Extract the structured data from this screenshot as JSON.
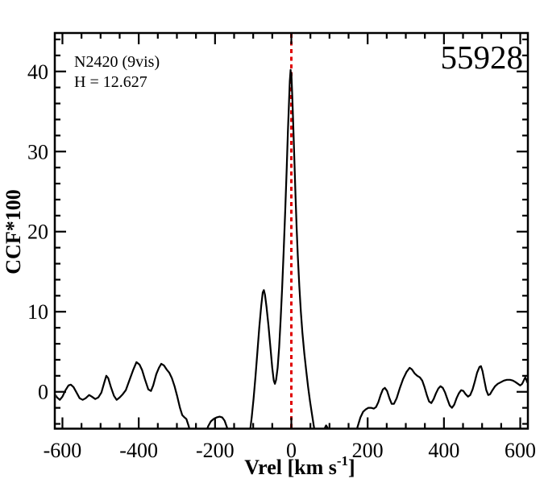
{
  "chart_data": {
    "type": "line",
    "annotations": {
      "cluster": "N2420 (9vis)",
      "magnitude": "H = 12.627",
      "mjd": "55928"
    },
    "xlabel": {
      "prefix": "Vrel [km s",
      "sup": "-1",
      "suffix": "]"
    },
    "ylabel": "CCF*100",
    "xlim": [
      -620,
      620
    ],
    "ylim": [
      -4.6,
      44.8
    ],
    "x_major_ticks": [
      -600,
      -400,
      -200,
      0,
      200,
      400,
      600
    ],
    "x_minor_step": 50,
    "y_major_ticks": [
      0,
      10,
      20,
      30,
      40
    ],
    "y_minor_step": 2,
    "grid": false,
    "legend": "none",
    "ref_line": {
      "x": 0,
      "color": "#e00000",
      "style": "dotted"
    },
    "colors": {
      "curve": "#000000",
      "axis": "#000000",
      "background": "#ffffff"
    },
    "series": [
      {
        "name": "ccf",
        "points": [
          [
            -621,
            -0.2
          ],
          [
            -614,
            -0.7
          ],
          [
            -607,
            -1.0
          ],
          [
            -600,
            -0.6
          ],
          [
            -592,
            0.2
          ],
          [
            -584,
            0.8
          ],
          [
            -578,
            0.9
          ],
          [
            -571,
            0.6
          ],
          [
            -563,
            -0.1
          ],
          [
            -555,
            -0.8
          ],
          [
            -547,
            -1.0
          ],
          [
            -539,
            -0.8
          ],
          [
            -530,
            -0.4
          ],
          [
            -523,
            -0.6
          ],
          [
            -514,
            -0.9
          ],
          [
            -506,
            -0.7
          ],
          [
            -498,
            -0.1
          ],
          [
            -490,
            1.2
          ],
          [
            -485,
            2.0
          ],
          [
            -480,
            1.7
          ],
          [
            -473,
            0.6
          ],
          [
            -465,
            -0.5
          ],
          [
            -458,
            -1.0
          ],
          [
            -450,
            -0.7
          ],
          [
            -442,
            -0.3
          ],
          [
            -434,
            0.2
          ],
          [
            -424,
            1.5
          ],
          [
            -414,
            2.8
          ],
          [
            -406,
            3.7
          ],
          [
            -398,
            3.4
          ],
          [
            -391,
            2.7
          ],
          [
            -384,
            1.6
          ],
          [
            -375,
            0.3
          ],
          [
            -368,
            0.1
          ],
          [
            -362,
            0.8
          ],
          [
            -354,
            2.2
          ],
          [
            -347,
            3.0
          ],
          [
            -341,
            3.5
          ],
          [
            -334,
            3.3
          ],
          [
            -327,
            2.8
          ],
          [
            -320,
            2.4
          ],
          [
            -313,
            1.7
          ],
          [
            -306,
            0.7
          ],
          [
            -299,
            -0.6
          ],
          [
            -292,
            -2.0
          ],
          [
            -286,
            -2.9
          ],
          [
            -280,
            -3.2
          ],
          [
            -275,
            -3.4
          ],
          [
            -269,
            -4.3
          ],
          [
            -263,
            -5.5
          ],
          [
            -256,
            -6.6
          ],
          [
            -248,
            -7.4
          ],
          [
            -240,
            -7.2
          ],
          [
            -232,
            -6.2
          ],
          [
            -225,
            -5.2
          ],
          [
            -218,
            -4.3
          ],
          [
            -211,
            -3.7
          ],
          [
            -204,
            -3.4
          ],
          [
            -196,
            -3.2
          ],
          [
            -188,
            -3.1
          ],
          [
            -181,
            -3.2
          ],
          [
            -175,
            -3.6
          ],
          [
            -169,
            -4.4
          ],
          [
            -163,
            -5.4
          ],
          [
            -156,
            -6.6
          ],
          [
            -148,
            -7.8
          ],
          [
            -139,
            -8.6
          ],
          [
            -130,
            -8.8
          ],
          [
            -122,
            -8.2
          ],
          [
            -115,
            -6.9
          ],
          [
            -109,
            -5.2
          ],
          [
            -104,
            -3.2
          ],
          [
            -99,
            -0.9
          ],
          [
            -94,
            1.9
          ],
          [
            -89,
            5.0
          ],
          [
            -84,
            8.0
          ],
          [
            -79,
            10.7
          ],
          [
            -75,
            12.4
          ],
          [
            -72,
            12.7
          ],
          [
            -69,
            12.1
          ],
          [
            -65,
            10.6
          ],
          [
            -60,
            8.3
          ],
          [
            -55,
            5.6
          ],
          [
            -50,
            3.0
          ],
          [
            -46,
            1.4
          ],
          [
            -43,
            1.0
          ],
          [
            -40,
            1.5
          ],
          [
            -36,
            3.0
          ],
          [
            -32,
            5.6
          ],
          [
            -28,
            9.0
          ],
          [
            -24,
            13.0
          ],
          [
            -20,
            17.6
          ],
          [
            -16,
            22.6
          ],
          [
            -12,
            28.0
          ],
          [
            -9,
            32.4
          ],
          [
            -6,
            36.4
          ],
          [
            -4,
            38.8
          ],
          [
            -2,
            40.2
          ],
          [
            -1,
            39.4
          ],
          [
            0,
            39.8
          ],
          [
            1,
            38.6
          ],
          [
            3,
            36.2
          ],
          [
            5,
            33.2
          ],
          [
            8,
            28.8
          ],
          [
            11,
            24.4
          ],
          [
            14,
            20.4
          ],
          [
            17,
            17.0
          ],
          [
            21,
            13.2
          ],
          [
            25,
            10.0
          ],
          [
            29,
            7.4
          ],
          [
            34,
            4.8
          ],
          [
            39,
            2.6
          ],
          [
            44,
            0.6
          ],
          [
            49,
            -1.2
          ],
          [
            54,
            -2.8
          ],
          [
            59,
            -4.3
          ],
          [
            64,
            -5.6
          ],
          [
            70,
            -6.4
          ],
          [
            76,
            -6.2
          ],
          [
            82,
            -5.4
          ],
          [
            87,
            -4.6
          ],
          [
            91,
            -4.2
          ],
          [
            95,
            -4.5
          ],
          [
            100,
            -5.4
          ],
          [
            106,
            -6.6
          ],
          [
            114,
            -7.8
          ],
          [
            123,
            -8.8
          ],
          [
            133,
            -9.2
          ],
          [
            143,
            -8.8
          ],
          [
            152,
            -7.8
          ],
          [
            160,
            -6.6
          ],
          [
            167,
            -5.4
          ],
          [
            174,
            -4.3
          ],
          [
            181,
            -3.2
          ],
          [
            188,
            -2.5
          ],
          [
            195,
            -2.2
          ],
          [
            202,
            -2.0
          ],
          [
            209,
            -2.0
          ],
          [
            216,
            -2.1
          ],
          [
            222,
            -1.9
          ],
          [
            228,
            -1.3
          ],
          [
            234,
            -0.4
          ],
          [
            240,
            0.3
          ],
          [
            245,
            0.5
          ],
          [
            251,
            0.1
          ],
          [
            257,
            -0.8
          ],
          [
            263,
            -1.5
          ],
          [
            269,
            -1.5
          ],
          [
            276,
            -0.8
          ],
          [
            284,
            0.4
          ],
          [
            293,
            1.6
          ],
          [
            302,
            2.5
          ],
          [
            310,
            3.0
          ],
          [
            316,
            2.8
          ],
          [
            323,
            2.3
          ],
          [
            330,
            2.0
          ],
          [
            337,
            1.8
          ],
          [
            343,
            1.4
          ],
          [
            349,
            0.6
          ],
          [
            355,
            -0.4
          ],
          [
            361,
            -1.2
          ],
          [
            367,
            -1.4
          ],
          [
            373,
            -0.9
          ],
          [
            379,
            -0.2
          ],
          [
            385,
            0.4
          ],
          [
            391,
            0.7
          ],
          [
            397,
            0.5
          ],
          [
            403,
            -0.1
          ],
          [
            409,
            -0.9
          ],
          [
            415,
            -1.7
          ],
          [
            421,
            -2.0
          ],
          [
            427,
            -1.6
          ],
          [
            433,
            -0.8
          ],
          [
            439,
            -0.2
          ],
          [
            445,
            0.2
          ],
          [
            451,
            0.1
          ],
          [
            457,
            -0.3
          ],
          [
            463,
            -0.6
          ],
          [
            469,
            -0.4
          ],
          [
            475,
            0.3
          ],
          [
            481,
            1.3
          ],
          [
            487,
            2.4
          ],
          [
            493,
            3.1
          ],
          [
            497,
            3.2
          ],
          [
            501,
            2.6
          ],
          [
            506,
            1.4
          ],
          [
            511,
            0.2
          ],
          [
            516,
            -0.4
          ],
          [
            521,
            -0.3
          ],
          [
            527,
            0.2
          ],
          [
            534,
            0.7
          ],
          [
            541,
            1.0
          ],
          [
            549,
            1.2
          ],
          [
            557,
            1.4
          ],
          [
            565,
            1.5
          ],
          [
            573,
            1.5
          ],
          [
            581,
            1.4
          ],
          [
            588,
            1.2
          ],
          [
            594,
            1.0
          ],
          [
            600,
            0.8
          ],
          [
            605,
            1.0
          ],
          [
            609,
            1.4
          ],
          [
            613,
            1.8
          ],
          [
            616,
            1.5
          ],
          [
            618,
            1.2
          ],
          [
            620,
            1.5
          ]
        ]
      }
    ]
  }
}
